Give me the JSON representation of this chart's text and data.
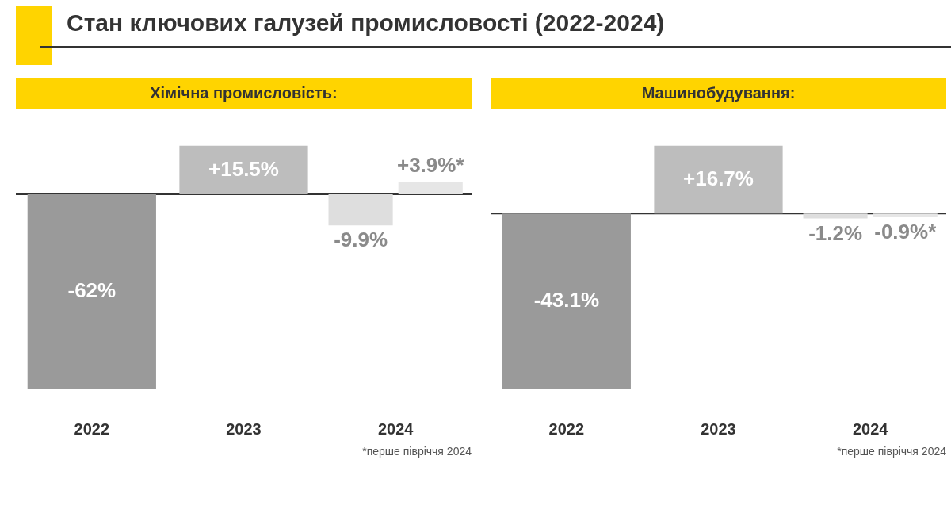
{
  "chart_data": [
    {
      "type": "bar",
      "title": "Стан ключових галузей промисловості (2022-2024)",
      "subtitle": "Хімічна промисловість:",
      "categories": [
        "2022",
        "2023",
        "2024"
      ],
      "series": [
        {
          "colors": [
            "#9a9a9a",
            "#bdbdbd",
            "#dedede"
          ],
          "values": [
            -62,
            15.5,
            -9.9
          ],
          "value_labels": [
            "-62%",
            "+15.5%",
            "-9.9%"
          ]
        },
        {
          "color": "#e6e6e6",
          "values": [
            null,
            null,
            3.9
          ],
          "value_labels": [
            null,
            null,
            "+3.9%*"
          ]
        }
      ],
      "annotations": [
        "*перше півріччя 2024"
      ],
      "legend": false,
      "grid": false
    },
    {
      "type": "bar",
      "subtitle": "Машинобудування:",
      "categories": [
        "2022",
        "2023",
        "2024"
      ],
      "series": [
        {
          "colors": [
            "#9a9a9a",
            "#bdbdbd",
            "#dedede"
          ],
          "values": [
            -43.1,
            16.7,
            -1.2
          ],
          "value_labels": [
            "-43.1%",
            "+16.7%",
            "-1.2%"
          ]
        },
        {
          "color": "#e6e6e6",
          "values": [
            null,
            null,
            -0.9
          ],
          "value_labels": [
            null,
            null,
            "-0.9%*"
          ]
        }
      ],
      "annotations": [
        "*перше півріччя 2024"
      ],
      "legend": false,
      "grid": false
    }
  ]
}
